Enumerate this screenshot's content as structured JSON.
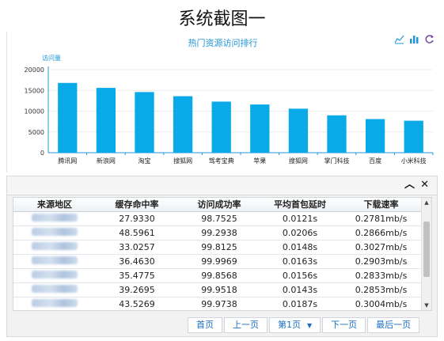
{
  "doc_title": "系统截图一",
  "chart_data": {
    "type": "bar",
    "title": "热门资源访问排行",
    "ylabel": "访问量",
    "xlabel": "",
    "categories": [
      "腾讯网",
      "新浪网",
      "淘宝",
      "搜狐网",
      "驾考宝典",
      "苹果",
      "搜狐网",
      "掌门科技",
      "百度",
      "小米科技"
    ],
    "values": [
      16800,
      15600,
      14600,
      13600,
      12300,
      11600,
      10600,
      9000,
      8100,
      7700
    ],
    "ylim": [
      0,
      20000
    ],
    "yticks": [
      "0",
      "5000",
      "10000",
      "15000",
      "20000"
    ],
    "grid": true,
    "bar_color": "#0aa9e8"
  },
  "toolbar_icons": [
    "line-chart-icon",
    "bar-chart-icon",
    "refresh-icon"
  ],
  "table": {
    "headers": [
      "来源地区",
      "缓存命中率",
      "访问成功率",
      "平均首包延时",
      "下载速率"
    ],
    "rows": [
      [
        "",
        "27.9330",
        "98.7525",
        "0.0121s",
        "0.2781mb/s"
      ],
      [
        "",
        "48.5961",
        "99.2938",
        "0.0206s",
        "0.2866mb/s"
      ],
      [
        "",
        "33.0257",
        "99.8125",
        "0.0148s",
        "0.3027mb/s"
      ],
      [
        "",
        "36.4630",
        "99.9969",
        "0.0163s",
        "0.2903mb/s"
      ],
      [
        "",
        "35.4775",
        "99.8568",
        "0.0156s",
        "0.2833mb/s"
      ],
      [
        "",
        "39.2695",
        "99.9518",
        "0.0143s",
        "0.2853mb/s"
      ],
      [
        "",
        "43.5269",
        "99.9738",
        "0.0187s",
        "0.3004mb/s"
      ]
    ]
  },
  "pager": {
    "first": "首页",
    "prev": "上一页",
    "page": "第1页",
    "next": "下一页",
    "last": "最后一页"
  },
  "colors": {
    "accent": "#2196d8",
    "bar": "#0aa9e8",
    "link": "#1a6fc4"
  }
}
